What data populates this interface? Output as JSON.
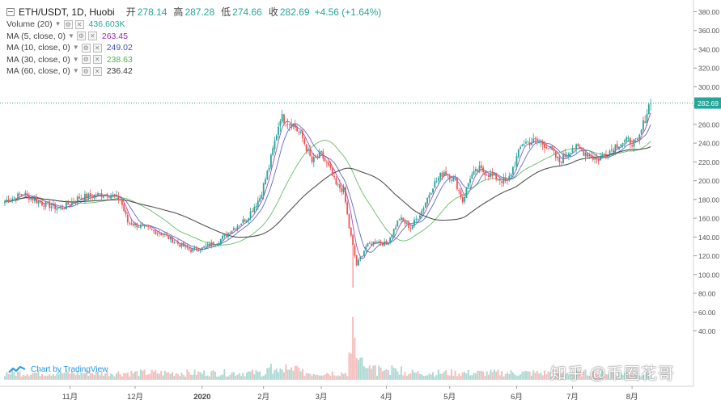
{
  "legend": {
    "symbol": "ETH/USDT, 1D, Huobi",
    "open_label": "开",
    "open": "278.14",
    "high_label": "高",
    "high": "287.28",
    "low_label": "低",
    "low": "274.66",
    "close_label": "收",
    "close": "282.69",
    "change": "+4.56 (+1.64%)",
    "indicators": [
      {
        "name": "Volume (20)",
        "value": "436.603K",
        "color": "#26a69a"
      },
      {
        "name": "MA (5, close, 0)",
        "value": "263.45",
        "color": "#9c27b0"
      },
      {
        "name": "MA (10, close, 0)",
        "value": "249.02",
        "color": "#3f51b5"
      },
      {
        "name": "MA (30, close, 0)",
        "value": "238.63",
        "color": "#4caf50"
      },
      {
        "name": "MA (60, close, 0)",
        "value": "236.42",
        "color": "#333333"
      }
    ]
  },
  "branding": {
    "tradingview": "Chart by TradingView",
    "watermark": "知乎 @币圈花哥"
  },
  "chart_data": {
    "type": "candlestick",
    "x_tick_labels": [
      "11月",
      "12月",
      "2020",
      "2月",
      "3月",
      "4月",
      "5月",
      "6月",
      "7月",
      "8月"
    ],
    "y_tick_labels": [
      "40.00",
      "60.00",
      "80.00",
      "100.00",
      "120.00",
      "140.00",
      "160.00",
      "180.00",
      "200.00",
      "220.00",
      "240.00",
      "260.00",
      "280.00",
      "300.00",
      "320.00",
      "340.00",
      "360.00",
      "380.00"
    ],
    "ylim": [
      20,
      385
    ],
    "last_price": "282.69",
    "price_line_color": "#26a69a",
    "up_color": "#26a69a",
    "down_color": "#ef5350",
    "anchors": [
      [
        0,
        178
      ],
      [
        10,
        186
      ],
      [
        20,
        176
      ],
      [
        30,
        170
      ],
      [
        40,
        182
      ],
      [
        55,
        186
      ],
      [
        62,
        180
      ],
      [
        66,
        156
      ],
      [
        75,
        150
      ],
      [
        85,
        143
      ],
      [
        92,
        134
      ],
      [
        100,
        126
      ],
      [
        106,
        128
      ],
      [
        115,
        136
      ],
      [
        122,
        148
      ],
      [
        130,
        160
      ],
      [
        137,
        182
      ],
      [
        142,
        215
      ],
      [
        148,
        268
      ],
      [
        155,
        260
      ],
      [
        160,
        245
      ],
      [
        165,
        220
      ],
      [
        170,
        228
      ],
      [
        175,
        210
      ],
      [
        178,
        195
      ],
      [
        182,
        190
      ],
      [
        185,
        150
      ],
      [
        189,
        110
      ],
      [
        194,
        130
      ],
      [
        200,
        136
      ],
      [
        205,
        132
      ],
      [
        212,
        160
      ],
      [
        218,
        150
      ],
      [
        224,
        168
      ],
      [
        230,
        195
      ],
      [
        236,
        210
      ],
      [
        242,
        200
      ],
      [
        246,
        178
      ],
      [
        250,
        204
      ],
      [
        255,
        212
      ],
      [
        262,
        205
      ],
      [
        270,
        198
      ],
      [
        278,
        240
      ],
      [
        285,
        242
      ],
      [
        291,
        238
      ],
      [
        298,
        220
      ],
      [
        305,
        236
      ],
      [
        312,
        230
      ],
      [
        318,
        222
      ],
      [
        325,
        232
      ],
      [
        330,
        240
      ],
      [
        335,
        242
      ],
      [
        340,
        240
      ],
      [
        343,
        260
      ],
      [
        346,
        280
      ],
      [
        347,
        282.69
      ]
    ],
    "ma_series": [
      {
        "name": "MA (5, close, 0)",
        "color": "#9c27b0"
      },
      {
        "name": "MA (10, close, 0)",
        "color": "#3f51b5"
      },
      {
        "name": "MA (30, close, 0)",
        "color": "#4caf50"
      },
      {
        "name": "MA (60, close, 0)",
        "color": "#333333"
      }
    ]
  }
}
